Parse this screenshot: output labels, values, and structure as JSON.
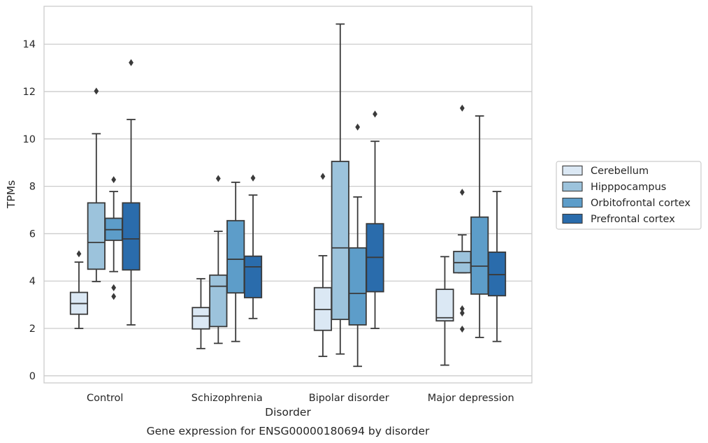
{
  "caption": "Gene expression for ENSG00000180694 by disorder",
  "chart_data": {
    "type": "box",
    "xlabel": "Disorder",
    "ylabel": "TPMs",
    "ylim": [
      -0.3,
      15.6
    ],
    "yticks": [
      0,
      2,
      4,
      6,
      8,
      10,
      12,
      14
    ],
    "grid": "horizontal",
    "legend_position": "right",
    "categories": [
      "Control",
      "Schizophrenia",
      "Bipolar disorder",
      "Major depression"
    ],
    "series": [
      {
        "name": "Cerebellum",
        "color": "#dbe8f4",
        "boxes": [
          {
            "whisker_low": 2.0,
            "q1": 2.6,
            "median": 3.05,
            "q3": 3.52,
            "whisker_high": 4.8,
            "outliers": [
              5.15
            ]
          },
          {
            "whisker_low": 1.15,
            "q1": 1.98,
            "median": 2.52,
            "q3": 2.88,
            "whisker_high": 4.1,
            "outliers": []
          },
          {
            "whisker_low": 0.82,
            "q1": 1.92,
            "median": 2.8,
            "q3": 3.72,
            "whisker_high": 5.07,
            "outliers": [
              8.42
            ]
          },
          {
            "whisker_low": 0.45,
            "q1": 2.32,
            "median": 2.45,
            "q3": 3.65,
            "whisker_high": 5.03,
            "outliers": []
          }
        ]
      },
      {
        "name": "Hipppocampus",
        "color": "#9cc3dc",
        "boxes": [
          {
            "whisker_low": 3.98,
            "q1": 4.5,
            "median": 5.63,
            "q3": 7.3,
            "whisker_high": 10.22,
            "outliers": [
              12.02
            ]
          },
          {
            "whisker_low": 1.37,
            "q1": 2.08,
            "median": 3.78,
            "q3": 4.25,
            "whisker_high": 6.1,
            "outliers": [
              8.33
            ]
          },
          {
            "whisker_low": 0.92,
            "q1": 2.38,
            "median": 5.4,
            "q3": 9.05,
            "whisker_high": 14.85,
            "outliers": []
          },
          {
            "whisker_low": 4.35,
            "q1": 4.35,
            "median": 4.78,
            "q3": 5.25,
            "whisker_high": 5.95,
            "outliers": [
              11.3,
              7.75,
              2.83,
              2.65,
              1.97
            ]
          }
        ]
      },
      {
        "name": "Orbitofrontal cortex",
        "color": "#5d9dc9",
        "boxes": [
          {
            "whisker_low": 4.4,
            "q1": 5.72,
            "median": 6.17,
            "q3": 6.65,
            "whisker_high": 7.78,
            "outliers": [
              8.28,
              3.72,
              3.35
            ]
          },
          {
            "whisker_low": 1.45,
            "q1": 3.5,
            "median": 4.92,
            "q3": 6.55,
            "whisker_high": 8.17,
            "outliers": []
          },
          {
            "whisker_low": 0.4,
            "q1": 2.15,
            "median": 3.48,
            "q3": 5.4,
            "whisker_high": 7.55,
            "outliers": [
              10.5
            ]
          },
          {
            "whisker_low": 1.62,
            "q1": 3.45,
            "median": 4.63,
            "q3": 6.7,
            "whisker_high": 10.97,
            "outliers": []
          }
        ]
      },
      {
        "name": "Prefrontal cortex",
        "color": "#2a6cac",
        "boxes": [
          {
            "whisker_low": 2.15,
            "q1": 4.47,
            "median": 5.78,
            "q3": 7.3,
            "whisker_high": 10.82,
            "outliers": [
              13.22
            ]
          },
          {
            "whisker_low": 2.42,
            "q1": 3.3,
            "median": 4.6,
            "q3": 5.05,
            "whisker_high": 7.63,
            "outliers": [
              8.35
            ]
          },
          {
            "whisker_low": 2.0,
            "q1": 3.55,
            "median": 5.0,
            "q3": 6.42,
            "whisker_high": 9.9,
            "outliers": [
              11.05
            ]
          },
          {
            "whisker_low": 1.45,
            "q1": 3.38,
            "median": 4.27,
            "q3": 5.22,
            "whisker_high": 7.78,
            "outliers": []
          }
        ]
      }
    ]
  }
}
